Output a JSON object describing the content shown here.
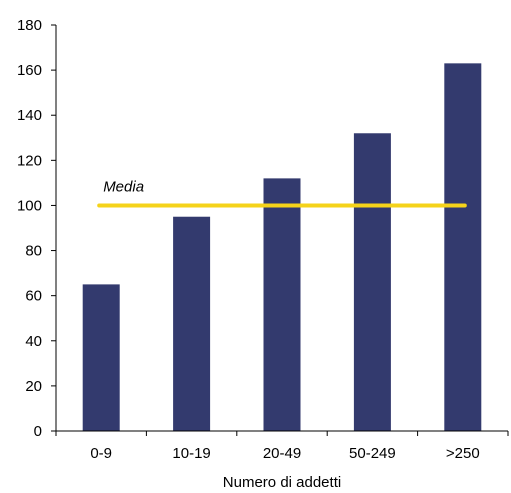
{
  "chart_data": {
    "type": "bar",
    "categories": [
      "0-9",
      "10-19",
      "20-49",
      "50-249",
      ">250"
    ],
    "values": [
      65,
      95,
      112,
      132,
      163
    ],
    "xlabel": "Numero di addetti",
    "ylabel": "",
    "ylim": [
      0,
      180
    ],
    "yticks": [
      0,
      20,
      40,
      60,
      80,
      100,
      120,
      140,
      160,
      180
    ],
    "grid": false,
    "legend": "none",
    "bar_color": "#333a6e",
    "reference_line": {
      "label": "Media",
      "value": 100,
      "color": "#f5d31a"
    }
  }
}
